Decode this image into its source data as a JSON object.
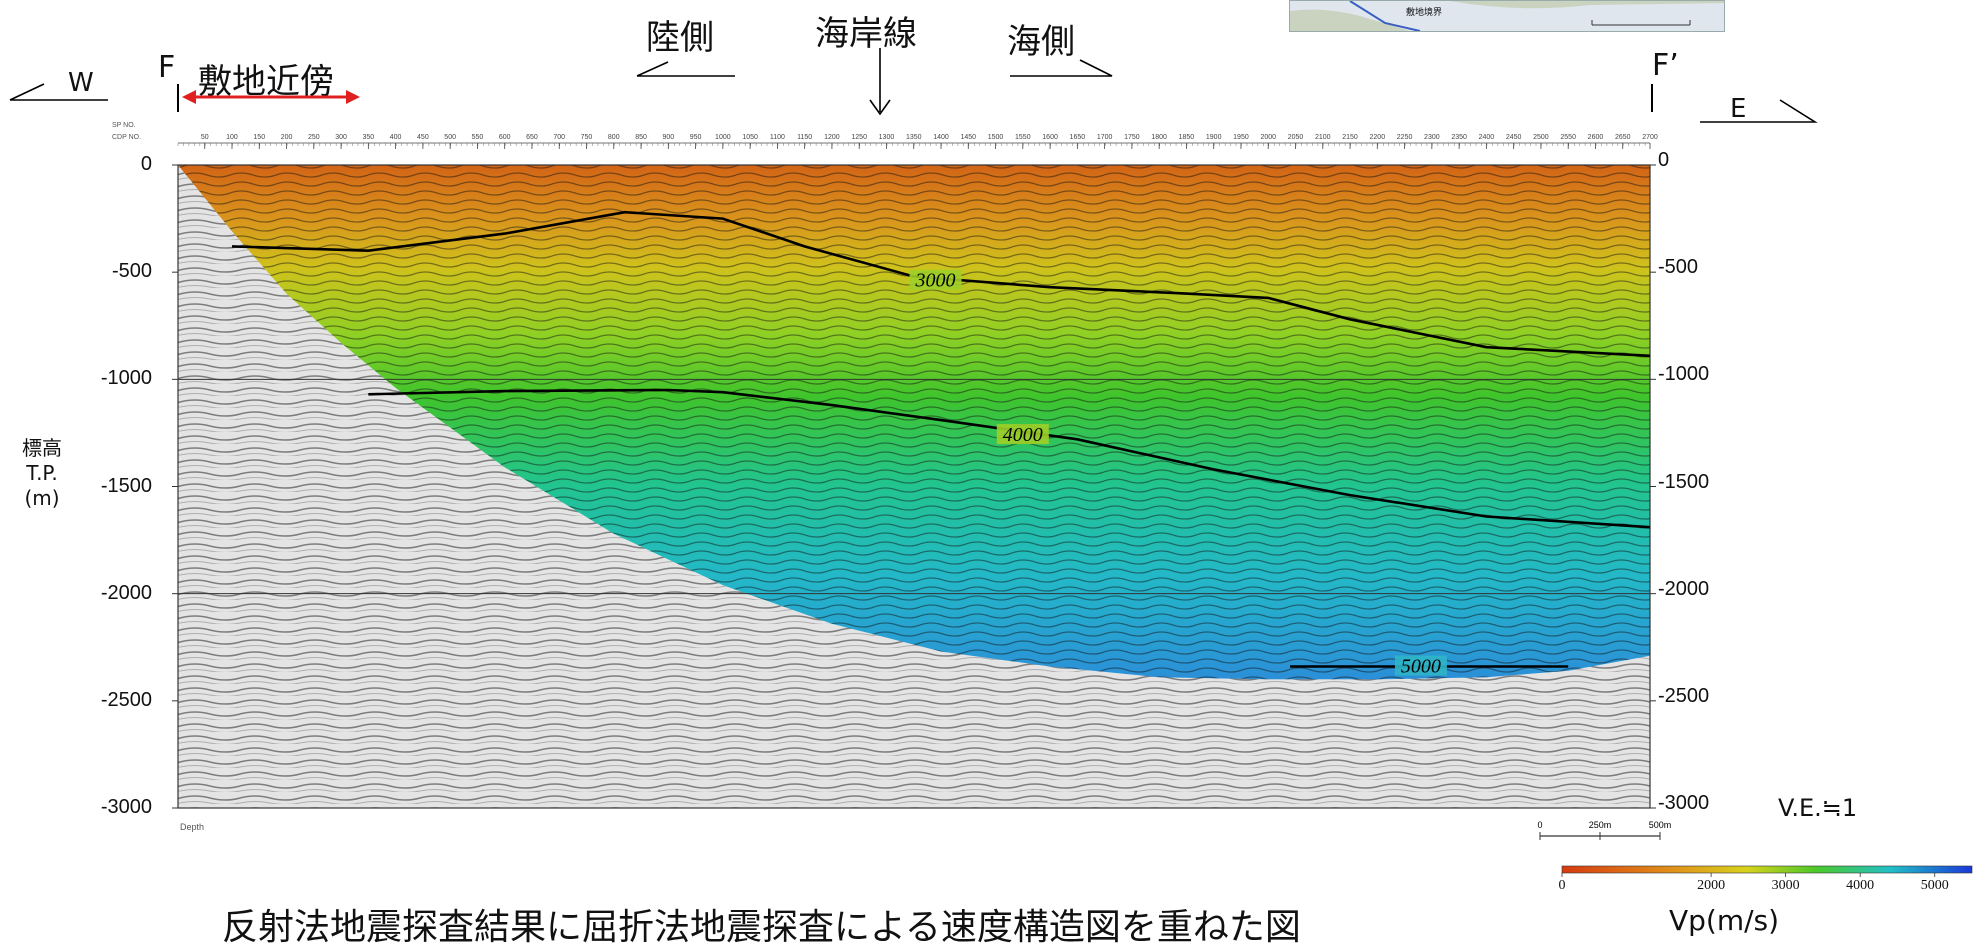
{
  "labels": {
    "west": "W",
    "east": "E",
    "point_left": "F",
    "point_right": "F’",
    "site_vicinity": "敷地近傍",
    "land_side": "陸側",
    "coastline": "海岸線",
    "sea_side": "海側",
    "ylabel_line1": "標高",
    "ylabel_line2": "T.P.",
    "ylabel_line3": "(m)",
    "ve": "V.E.≒1",
    "cb_label": "Vp(m/s)",
    "caption": "反射法地震探査結果に屈折法地震探査による速度構造図を重ねた図",
    "depth": "Depth",
    "sp_no": "SP NO.",
    "cdp_no": "CDP NO.",
    "inset_text": "敷地境界",
    "scale_0": "0",
    "scale_250": "250m",
    "scale_500": "500m"
  },
  "colors": {
    "orange": "#d9651c",
    "yellow": "#c8cc1a",
    "green": "#2ebd2a",
    "cyan": "#22b8c8",
    "blue": "#2d6be0",
    "red_arrow": "#e02020"
  },
  "chart_data": {
    "type": "heatmap",
    "ylabel": "標高 T.P. (m)",
    "ylim": [
      -3000,
      0
    ],
    "yticks": [
      0,
      -500,
      -1000,
      -1500,
      -2000,
      -2500,
      -3000
    ],
    "cdp_range": [
      1,
      2700
    ],
    "cdp_ticks": [
      50,
      100,
      150,
      200,
      250,
      300,
      350,
      400,
      450,
      500,
      550,
      600,
      650,
      700,
      750,
      800,
      850,
      900,
      950,
      1000,
      1050,
      1100,
      1150,
      1200,
      1250,
      1300,
      1350,
      1400,
      1450,
      1500,
      1550,
      1600,
      1650,
      1700,
      1750,
      1800,
      1850,
      1900,
      1950,
      2000,
      2050,
      2100,
      2150,
      2200,
      2250,
      2300,
      2350,
      2400,
      2450,
      2500,
      2550,
      2600,
      2650,
      2700
    ],
    "colorbar": {
      "label": "Vp(m/s)",
      "range": [
        0,
        5500
      ],
      "ticks": [
        0,
        2000,
        3000,
        4000,
        5000
      ]
    },
    "coverage_bottom": {
      "x": [
        1,
        100,
        200,
        300,
        400,
        600,
        800,
        1000,
        1200,
        1400,
        1600,
        1800,
        2000,
        2200,
        2400,
        2550,
        2700
      ],
      "y": [
        0,
        -310,
        -600,
        -830,
        -1040,
        -1410,
        -1720,
        -1960,
        -2140,
        -2270,
        -2340,
        -2390,
        -2400,
        -2400,
        -2390,
        -2360,
        -2290
      ]
    },
    "contours": [
      {
        "label": "3000",
        "x": [
          100,
          350,
          600,
          820,
          1000,
          1150,
          1350,
          1600,
          1850,
          2000,
          2150,
          2400,
          2700
        ],
        "y": [
          -380,
          -400,
          -320,
          -220,
          -250,
          -380,
          -520,
          -570,
          -600,
          -620,
          -720,
          -850,
          -890
        ],
        "label_x": 1390,
        "label_y": -540
      },
      {
        "label": "4000",
        "x": [
          350,
          600,
          900,
          1000,
          1200,
          1400,
          1650,
          1900,
          2150,
          2400,
          2700
        ],
        "y": [
          -1070,
          -1055,
          -1050,
          -1060,
          -1120,
          -1190,
          -1280,
          -1420,
          -1540,
          -1640,
          -1690
        ],
        "label_x": 1550,
        "label_y": -1260
      },
      {
        "label": "5000",
        "x": [
          2040,
          2550
        ],
        "y": [
          -2340,
          -2340
        ],
        "label_x": 2280,
        "label_y": -2340
      }
    ]
  }
}
